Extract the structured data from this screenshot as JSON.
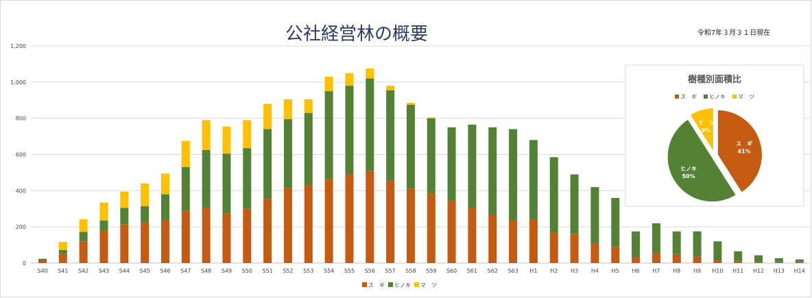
{
  "title": "公社経営林の概要",
  "date_note": "令和7年３月３１日現在",
  "colors": {
    "sugi": "#c55a11",
    "hinoki": "#548235",
    "matsu": "#ffc000"
  },
  "chart_data": [
    {
      "type": "bar",
      "stacked": true,
      "categories": [
        "S40",
        "S41",
        "S42",
        "S43",
        "S44",
        "S45",
        "S46",
        "S47",
        "S48",
        "S49",
        "S50",
        "S51",
        "S52",
        "S53",
        "S54",
        "S55",
        "S56",
        "S57",
        "S58",
        "S59",
        "S60",
        "S61",
        "S62",
        "S63",
        "H1",
        "H2",
        "H3",
        "H4",
        "H5",
        "H6",
        "H7",
        "H8",
        "H9",
        "H10",
        "H11",
        "H12",
        "H13",
        "H14"
      ],
      "series": [
        {
          "name": "ス　ギ",
          "values": [
            15,
            50,
            120,
            180,
            215,
            225,
            235,
            290,
            305,
            275,
            300,
            355,
            415,
            430,
            465,
            490,
            510,
            455,
            410,
            385,
            345,
            305,
            265,
            235,
            240,
            170,
            160,
            110,
            90,
            30,
            55,
            50,
            35,
            15,
            10,
            5,
            5,
            5
          ]
        },
        {
          "name": "ヒノキ",
          "values": [
            8,
            22,
            52,
            55,
            90,
            90,
            145,
            240,
            320,
            330,
            335,
            385,
            380,
            400,
            485,
            490,
            510,
            500,
            465,
            415,
            405,
            460,
            485,
            505,
            440,
            415,
            330,
            310,
            270,
            145,
            165,
            125,
            140,
            105,
            55,
            38,
            22,
            15
          ]
        },
        {
          "name": "マ　ツ",
          "values": [
            2,
            45,
            70,
            100,
            90,
            125,
            115,
            145,
            165,
            150,
            155,
            140,
            110,
            75,
            80,
            70,
            55,
            25,
            10,
            5,
            0,
            0,
            0,
            0,
            0,
            0,
            0,
            0,
            0,
            0,
            0,
            0,
            0,
            0,
            0,
            0,
            0,
            0
          ]
        }
      ],
      "ylim": [
        0,
        1200
      ],
      "yticks": [
        0,
        200,
        400,
        600,
        800,
        1000,
        1200
      ],
      "ytick_labels": [
        "0",
        "200",
        "400",
        "600",
        "800",
        "1,000",
        "1,200"
      ],
      "grid": true,
      "legend_position": "bottom"
    },
    {
      "type": "pie",
      "title": "樹種別面積比",
      "legend_position": "top",
      "slices": [
        {
          "name": "ス　ギ",
          "label": "ス　ギ",
          "percent_label": "41%",
          "value": 41
        },
        {
          "name": "ヒノキ",
          "label": "ヒノキ",
          "percent_label": "50%",
          "value": 50
        },
        {
          "name": "マ　ツ",
          "label": "マ　ツ",
          "percent_label": "9%",
          "value": 9
        }
      ]
    }
  ]
}
